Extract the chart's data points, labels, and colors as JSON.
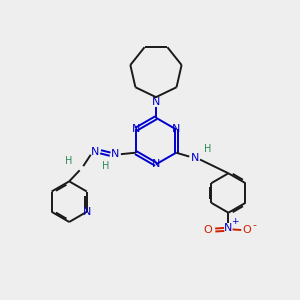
{
  "bg_color": "#eeeeee",
  "bond_color": "#1a1a1a",
  "N_color": "#0000cc",
  "H_color": "#2e8b57",
  "O_color": "#cc2200",
  "figsize": [
    3.0,
    3.0
  ],
  "dpi": 100,
  "xlim": [
    0,
    10
  ],
  "ylim": [
    0,
    10
  ]
}
